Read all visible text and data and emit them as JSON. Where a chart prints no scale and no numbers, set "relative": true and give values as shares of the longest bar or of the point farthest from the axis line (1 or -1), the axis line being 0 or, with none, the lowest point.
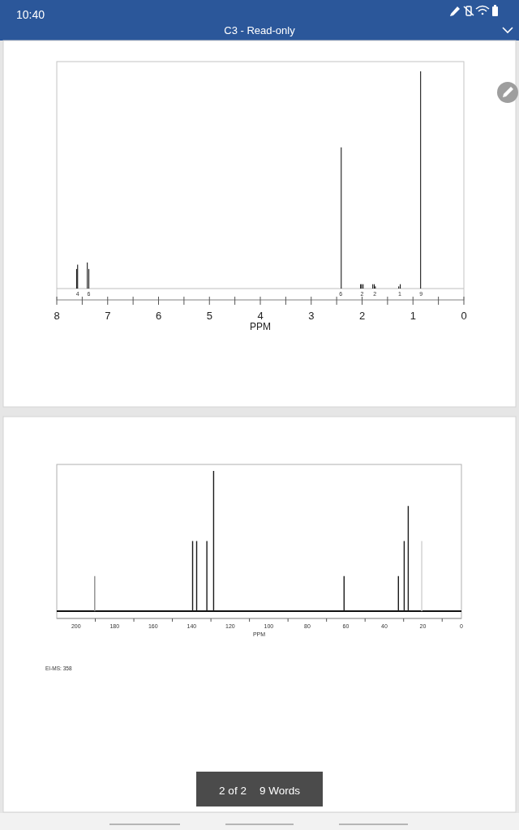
{
  "chart_data": [
    {
      "type": "bar",
      "relative": true,
      "xlabel": "PPM",
      "xlim": [
        8,
        0
      ],
      "xticks": [
        8,
        {
          "value": 7.5,
          "label": null
        },
        7,
        {
          "value": 6.5,
          "label": null
        },
        6,
        {
          "value": 5.5,
          "label": null
        },
        5,
        {
          "value": 4.5,
          "label": null
        },
        4,
        {
          "value": 3.5,
          "label": null
        },
        3,
        {
          "value": 2.5,
          "label": null
        },
        2,
        {
          "value": 1.5,
          "label": null
        },
        1,
        {
          "value": 0.5,
          "label": null
        },
        0
      ],
      "x": [
        7.61,
        7.59,
        7.4,
        7.37,
        2.41,
        2.03,
        2.01,
        1.98,
        1.79,
        1.76,
        1.74,
        1.28,
        1.25,
        0.85
      ],
      "values": [
        0.09,
        0.11,
        0.12,
        0.09,
        0.65,
        0.02,
        0.02,
        0.02,
        0.02,
        0.02,
        0.01,
        0.01,
        0.02,
        1
      ],
      "color": "#1a1a1a",
      "annotations": [
        "10:40",
        "C3 - Read-only",
        {
          "text": "4",
          "x": 7.59,
          "y": 0
        },
        {
          "text": "6",
          "x": 7.37,
          "y": 0
        },
        {
          "text": "6",
          "x": 2.42,
          "y": 0
        },
        {
          "text": "2",
          "x": 2.0,
          "y": 0
        },
        {
          "text": "2",
          "x": 1.75,
          "y": 0
        },
        {
          "text": "1",
          "x": 1.26,
          "y": 0
        },
        {
          "text": "9",
          "x": 0.84,
          "y": 0
        }
      ]
    },
    {
      "type": "bar",
      "relative": true,
      "xlabel": "PPM",
      "xlim": [
        210,
        0
      ],
      "xticks": [
        200,
        {
          "value": 190,
          "label": null
        },
        180,
        {
          "value": 170,
          "label": null
        },
        160,
        {
          "value": 150,
          "label": null
        },
        140,
        {
          "value": 130,
          "label": null
        },
        120,
        {
          "value": 110,
          "label": null
        },
        100,
        {
          "value": 90,
          "label": null
        },
        80,
        {
          "value": 70,
          "label": null
        },
        60,
        {
          "value": 50,
          "label": null
        },
        40,
        {
          "value": 30,
          "label": null
        },
        20,
        {
          "value": 10,
          "label": null
        },
        0
      ],
      "x": [
        190.3,
        139.5,
        137.4,
        132.1,
        128.6,
        60.9,
        32.7,
        29.7,
        27.6,
        20.6
      ],
      "values": [
        0.25,
        0.5,
        0.5,
        0.5,
        1,
        0.25,
        0.25,
        0.5,
        0.75,
        0.5
      ],
      "colors": [
        "#8c8c8c",
        "#1a1a1a",
        "#1a1a1a",
        "#1a1a1a",
        "#1a1a1a",
        "#1a1a1a",
        "#1a1a1a",
        "#1a1a1a",
        "#1a1a1a",
        "#cfcfcf"
      ],
      "annotations": [
        "EI-MS: 358",
        "2 of 2",
        "9 Words"
      ]
    }
  ]
}
